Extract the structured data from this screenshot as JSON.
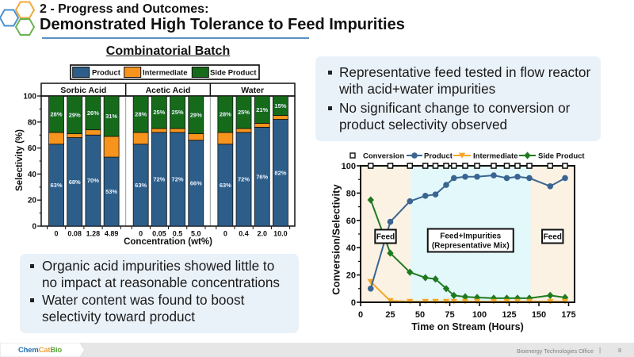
{
  "logo": {
    "orange": "#F2A93B",
    "blue": "#4A90CF",
    "green": "#6BB24F"
  },
  "header": {
    "section": "2 - Progress and Outcomes:",
    "title": "Demonstrated High Tolerance to Feed Impurities",
    "accent": "#5B8FC3"
  },
  "right_callout": {
    "bullets": [
      {
        "lines": [
          "Representative feed tested in flow reactor",
          "with acid+water impurities"
        ]
      },
      {
        "lines": [
          "No significant change to conversion or",
          "product selectivity observed"
        ]
      }
    ]
  },
  "left_callout": {
    "bullets": [
      {
        "lines": [
          "Organic acid impurities showed little to",
          "no impact at reasonable concentrations"
        ]
      },
      {
        "lines": [
          "Water content was found to boost",
          "selectivity toward product"
        ]
      }
    ]
  },
  "footer": {
    "brand": {
      "chem": "Chem",
      "cat": "Cat",
      "bio": "Bio"
    },
    "brand_colors": {
      "chem": "#1F6FB2",
      "cat": "#F2A03D",
      "bio": "#5EA53F"
    },
    "office": "Bioenergy Technologies Office",
    "separator": "|",
    "page": "8"
  },
  "chart_data": [
    {
      "type": "bar",
      "stacked": true,
      "title": "Combinatorial Batch",
      "xlabel": "Concentration (wt%)",
      "ylabel": "Selectivity (%)",
      "ylim": [
        0,
        100
      ],
      "yticks": [
        0,
        20,
        40,
        60,
        80,
        100
      ],
      "grid": false,
      "legend": {
        "position": "top",
        "entries": [
          {
            "key": "product",
            "name": "Product",
            "color": "#2D5E8A"
          },
          {
            "key": "intermediate",
            "name": "Intermediate",
            "color": "#F7941D"
          },
          {
            "key": "side_product",
            "name": "Side Product",
            "color": "#166B1B"
          }
        ]
      },
      "groups": [
        {
          "name": "Sorbic Acid",
          "categories": [
            "0",
            "0.08",
            "1.28",
            "4.89"
          ],
          "product": [
            63,
            68,
            70,
            53
          ],
          "intermediate": [
            9,
            3,
            4,
            16
          ],
          "side_product": [
            28,
            29,
            26,
            31
          ],
          "product_labels": [
            "63%",
            "68%",
            "70%",
            "53%"
          ],
          "side_product_labels": [
            "28%",
            "29%",
            "26%",
            "31%"
          ]
        },
        {
          "name": "Acetic Acid",
          "categories": [
            "0",
            "0.05",
            "0.5",
            "5.0"
          ],
          "product": [
            63,
            72,
            72,
            66
          ],
          "intermediate": [
            9,
            3,
            3,
            5
          ],
          "side_product": [
            28,
            25,
            25,
            29
          ],
          "product_labels": [
            "63%",
            "72%",
            "72%",
            "66%"
          ],
          "side_product_labels": [
            "28%",
            "25%",
            "25%",
            "29%"
          ]
        },
        {
          "name": "Water",
          "categories": [
            "0",
            "0.4",
            "2.0",
            "10.0"
          ],
          "product": [
            63,
            72,
            76,
            82
          ],
          "intermediate": [
            9,
            3,
            3,
            3
          ],
          "side_product": [
            28,
            25,
            21,
            15
          ],
          "product_labels": [
            "63%",
            "72%",
            "76%",
            "82%"
          ],
          "side_product_labels": [
            "28%",
            "25%",
            "21%",
            "15%"
          ]
        }
      ]
    },
    {
      "type": "line",
      "xlabel": "Time on Stream (Hours)",
      "ylabel": "Conversion/Selectivity",
      "xlim": [
        0,
        180
      ],
      "ylim": [
        0,
        100
      ],
      "xticks": [
        0,
        25,
        50,
        75,
        100,
        125,
        150,
        175
      ],
      "yticks": [
        0,
        20,
        40,
        60,
        80,
        100
      ],
      "grid": false,
      "legend_position": "top",
      "x": [
        8.5,
        25,
        41.5,
        54.5,
        63,
        72,
        78.5,
        88,
        98,
        112,
        123,
        132,
        142,
        159.5,
        172
      ],
      "series": [
        {
          "name": "Conversion",
          "color": "#111111",
          "marker": "square-open",
          "line": false,
          "values": [
            100,
            100,
            100,
            100,
            100,
            100,
            100,
            100,
            100,
            100,
            100,
            100,
            100,
            100,
            100
          ]
        },
        {
          "name": "Product",
          "color": "#3A6591",
          "marker": "circle",
          "line": true,
          "values": [
            10,
            59,
            74,
            78,
            79,
            86,
            91,
            92,
            92,
            93,
            91,
            92,
            91,
            85,
            91
          ]
        },
        {
          "name": "Intermediate",
          "color": "#F5A623",
          "marker": "triangle-down",
          "line": true,
          "values": [
            15,
            1,
            0.5,
            0.5,
            0.5,
            0.5,
            0.5,
            0.5,
            0.5,
            0.5,
            0.5,
            0.5,
            0.5,
            0.5,
            0.5
          ]
        },
        {
          "name": "Side Product",
          "color": "#1F7A1F",
          "marker": "diamond",
          "line": true,
          "values": [
            75,
            36,
            22,
            18,
            17,
            10,
            5,
            4,
            3.5,
            3,
            3,
            3,
            3,
            5,
            3.5
          ]
        }
      ],
      "regions": [
        {
          "label_lines": [
            "Feed"
          ],
          "from": 0,
          "to": 42,
          "color": "#FBF2E4"
        },
        {
          "label_lines": [
            "Feed+Impurities",
            "(Representative Mix)"
          ],
          "from": 42,
          "to": 143,
          "color": "#E2F8FB"
        },
        {
          "label_lines": [
            "Feed"
          ],
          "from": 143,
          "to": 180,
          "color": "#FBF2E4"
        }
      ]
    }
  ]
}
